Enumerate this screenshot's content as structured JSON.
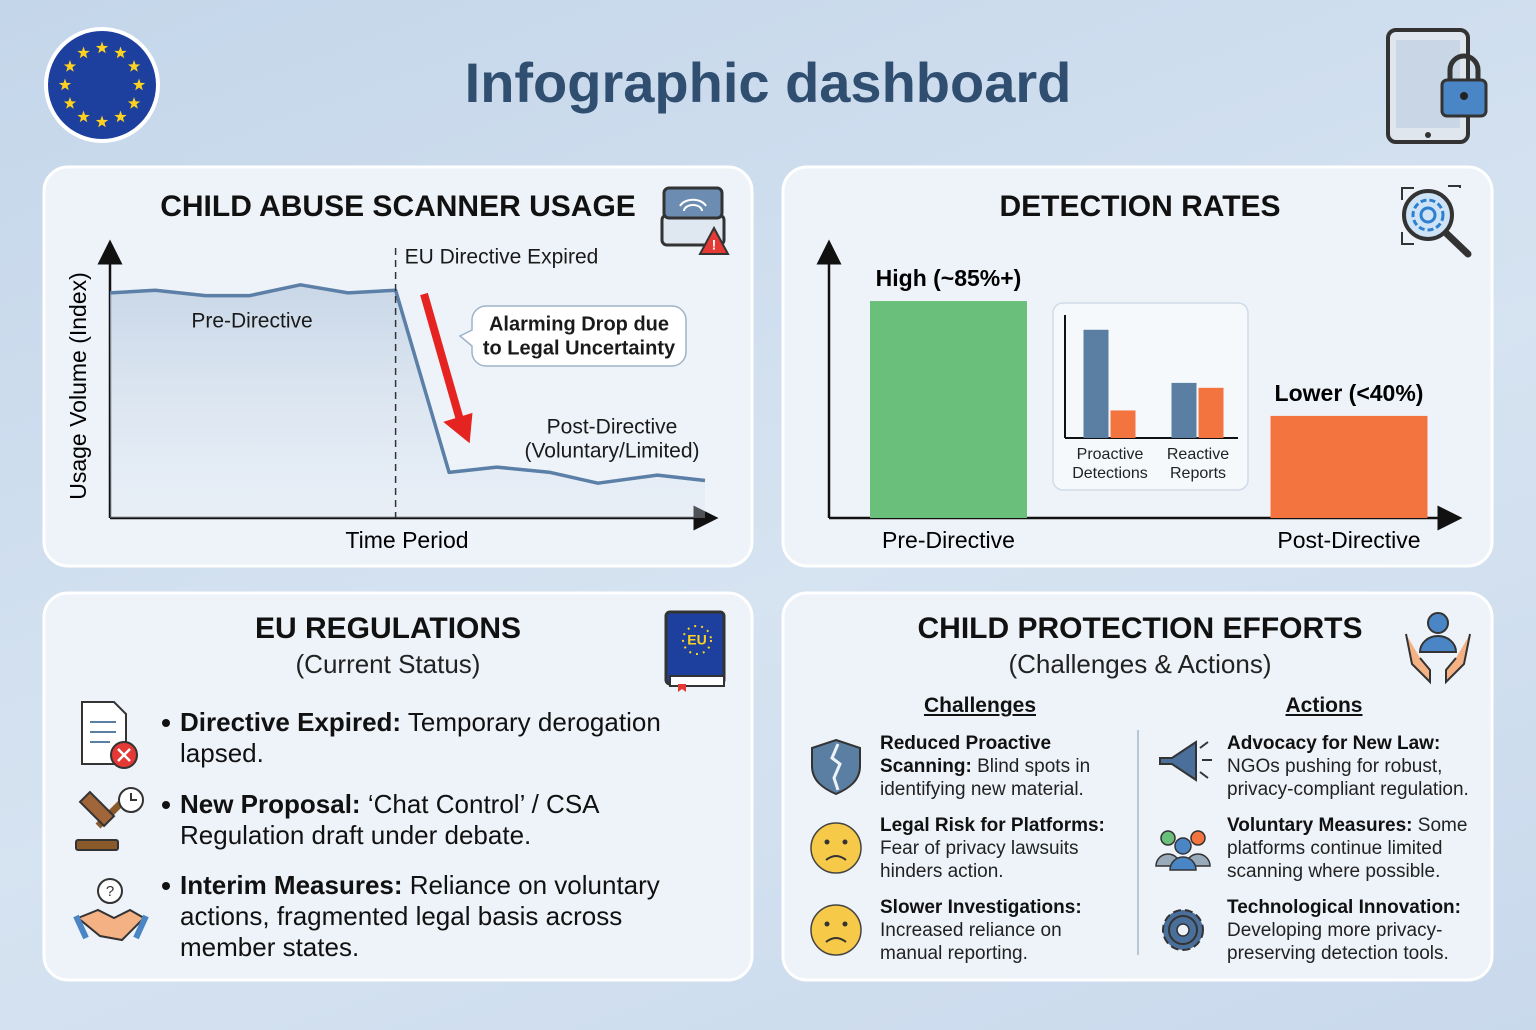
{
  "header": {
    "title": "Infographic dashboard"
  },
  "chart_data": [
    {
      "type": "line",
      "title": "CHILD ABUSE SCANNER USAGE",
      "x_label": "Time Period",
      "y_label": "Usage Volume (Index)",
      "x": [
        0,
        7.6,
        16,
        23.5,
        32,
        40,
        48,
        57,
        65,
        74,
        82,
        92,
        100
      ],
      "xlim": [
        0,
        100
      ],
      "ylim": [
        0,
        100
      ],
      "series": [
        {
          "color": "#5b7fa6",
          "values": [
            84,
            85,
            83,
            83,
            87,
            84,
            85,
            17,
            19,
            17,
            13,
            16,
            14
          ]
        }
      ],
      "annotations": [
        {
          "lines": [
            "EU Directive Expired"
          ],
          "x": 48
        },
        {
          "lines": [
            "Pre-Directive"
          ]
        },
        {
          "lines": [
            "Alarming Drop due",
            "to Legal Uncertainty"
          ]
        },
        {
          "lines": [
            "Post-Directive",
            "(Voluntary/Limited)"
          ]
        }
      ]
    },
    {
      "type": "bar",
      "title": "DETECTION RATES",
      "categories": [
        "Pre-Directive",
        "Post-Directive"
      ],
      "values": [
        85,
        40
      ],
      "value_labels": [
        "High (~85%+)",
        "Lower (<40%)"
      ],
      "colors": [
        "#6abf7b",
        "#f4743f"
      ],
      "ylim": [
        0,
        105
      ]
    },
    {
      "type": "grouped-bar",
      "categories": [
        "Proactive Detections",
        "Reactive Reports"
      ],
      "series": [
        {
          "color": "#5a7fa3",
          "values": [
            110,
            56
          ]
        },
        {
          "color": "#f4743f",
          "values": [
            28,
            51
          ]
        }
      ],
      "ylim": [
        0,
        125
      ]
    }
  ],
  "regulations": {
    "title": "EU REGULATIONS",
    "subtitle": "(Current Status)",
    "items": [
      {
        "label": "Directive Expired:",
        "text": "Temporary derogation lapsed."
      },
      {
        "label": "New Proposal:",
        "text": "‘Chat Control’ / CSA Regulation draft under debate."
      },
      {
        "label": "Interim Measures:",
        "text": "Reliance on voluntary actions, fragmented legal basis across member states."
      }
    ]
  },
  "efforts": {
    "title": "CHILD PROTECTION EFFORTS",
    "subtitle": "(Challenges & Actions)",
    "challenges": {
      "heading": "Challenges",
      "items": [
        {
          "label": "Reduced Proactive Scanning:",
          "text": "Blind spots in identifying new material."
        },
        {
          "label": "Legal Risk for Platforms:",
          "text": "Fear of privacy lawsuits hinders action."
        },
        {
          "label": "Slower Investigations:",
          "text": "Increased reliance on manual reporting."
        }
      ]
    },
    "actions": {
      "heading": "Actions",
      "items": [
        {
          "label": "Advocacy for New Law:",
          "text": "NGOs pushing for robust, privacy-compliant regulation."
        },
        {
          "label": "Voluntary Measures:",
          "text": "Some platforms continue limited scanning where possible."
        },
        {
          "label": "Technological Innovation:",
          "text": "Developing more privacy-preserving detection tools."
        }
      ]
    }
  }
}
